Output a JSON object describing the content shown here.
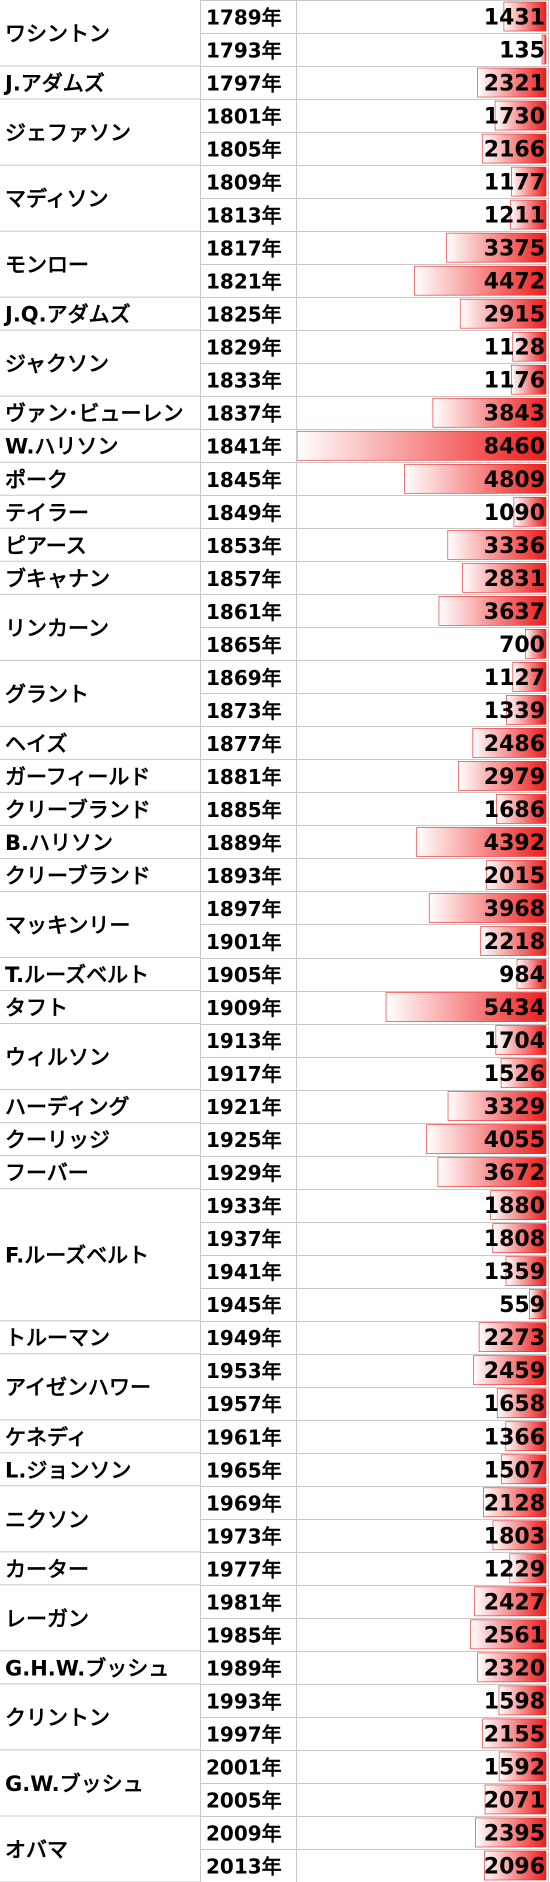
{
  "chart_data": {
    "type": "bar",
    "style": "data-bars-in-spreadsheet",
    "bar_color": "#ee1c1c",
    "bar_fade_color": "#ffffff",
    "grid": true,
    "axis_max": 8460,
    "presidents": [
      {
        "name": "ワシントン",
        "terms": 2
      },
      {
        "name": "J.アダムズ",
        "terms": 1
      },
      {
        "name": "ジェファソン",
        "terms": 2
      },
      {
        "name": "マディソン",
        "terms": 2
      },
      {
        "name": "モンロー",
        "terms": 2
      },
      {
        "name": "J.Q.アダムズ",
        "terms": 1
      },
      {
        "name": "ジャクソン",
        "terms": 2
      },
      {
        "name": "ヴァン･ビューレン",
        "terms": 1
      },
      {
        "name": "W.ハリソン",
        "terms": 1
      },
      {
        "name": "ポーク",
        "terms": 1
      },
      {
        "name": "テイラー",
        "terms": 1
      },
      {
        "name": "ピアース",
        "terms": 1
      },
      {
        "name": "ブキャナン",
        "terms": 1
      },
      {
        "name": "リンカーン",
        "terms": 2
      },
      {
        "name": "グラント",
        "terms": 2
      },
      {
        "name": "ヘイズ",
        "terms": 1
      },
      {
        "name": "ガーフィールド",
        "terms": 1
      },
      {
        "name": "クリーブランド",
        "terms": 1
      },
      {
        "name": "B.ハリソン",
        "terms": 1
      },
      {
        "name": "クリーブランド",
        "terms": 1
      },
      {
        "name": "マッキンリー",
        "terms": 2
      },
      {
        "name": "T.ルーズベルト",
        "terms": 1
      },
      {
        "name": "タフト",
        "terms": 1
      },
      {
        "name": "ウィルソン",
        "terms": 2
      },
      {
        "name": "ハーディング",
        "terms": 1
      },
      {
        "name": "クーリッジ",
        "terms": 1
      },
      {
        "name": "フーバー",
        "terms": 1
      },
      {
        "name": "F.ルーズベルト",
        "terms": 4
      },
      {
        "name": "トルーマン",
        "terms": 1
      },
      {
        "name": "アイゼンハワー",
        "terms": 2
      },
      {
        "name": "ケネディ",
        "terms": 1
      },
      {
        "name": "L.ジョンソン",
        "terms": 1
      },
      {
        "name": "ニクソン",
        "terms": 2
      },
      {
        "name": "カーター",
        "terms": 1
      },
      {
        "name": "レーガン",
        "terms": 2
      },
      {
        "name": "G.H.W.ブッシュ",
        "terms": 1
      },
      {
        "name": "クリントン",
        "terms": 2
      },
      {
        "name": "G.W.ブッシュ",
        "terms": 2
      },
      {
        "name": "オバマ",
        "terms": 2
      }
    ],
    "categories": [
      "1789年",
      "1793年",
      "1797年",
      "1801年",
      "1805年",
      "1809年",
      "1813年",
      "1817年",
      "1821年",
      "1825年",
      "1829年",
      "1833年",
      "1837年",
      "1841年",
      "1845年",
      "1849年",
      "1853年",
      "1857年",
      "1861年",
      "1865年",
      "1869年",
      "1873年",
      "1877年",
      "1881年",
      "1885年",
      "1889年",
      "1893年",
      "1897年",
      "1901年",
      "1905年",
      "1909年",
      "1913年",
      "1917年",
      "1921年",
      "1925年",
      "1929年",
      "1933年",
      "1937年",
      "1941年",
      "1945年",
      "1949年",
      "1953年",
      "1957年",
      "1961年",
      "1965年",
      "1969年",
      "1973年",
      "1977年",
      "1981年",
      "1985年",
      "1989年",
      "1993年",
      "1997年",
      "2001年",
      "2005年",
      "2009年",
      "2013年"
    ],
    "values": [
      1431,
      135,
      2321,
      1730,
      2166,
      1177,
      1211,
      3375,
      4472,
      2915,
      1128,
      1176,
      3843,
      8460,
      4809,
      1090,
      3336,
      2831,
      3637,
      700,
      1127,
      1339,
      2486,
      2979,
      1686,
      4392,
      2015,
      3968,
      2218,
      984,
      5434,
      1704,
      1526,
      3329,
      4055,
      3672,
      1880,
      1808,
      1359,
      559,
      2273,
      2459,
      1658,
      1366,
      1507,
      2128,
      1803,
      1229,
      2427,
      2561,
      2320,
      1598,
      2155,
      1592,
      2071,
      2395,
      2096
    ]
  }
}
